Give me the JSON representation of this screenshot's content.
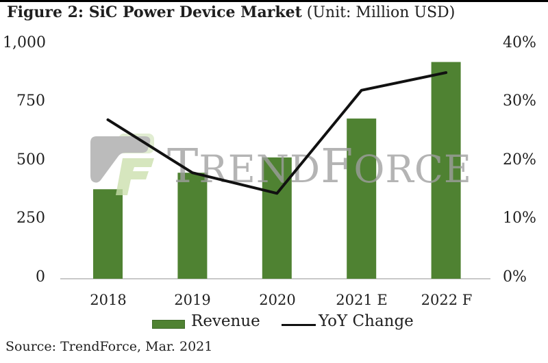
{
  "title": {
    "main": "Figure 2: SiC Power Device Market",
    "unit": " (Unit: Million USD)"
  },
  "source": "Source: TrendForce, Mar. 2021",
  "watermark": {
    "t": "T",
    "rend": "REND",
    "f": "F",
    "orce": "ORCE"
  },
  "legend": {
    "revenue": "Revenue",
    "yoy": "YoY Change"
  },
  "chart_data": {
    "type": "bar+line combo",
    "categories": [
      "2018",
      "2019",
      "2020",
      "2021 E",
      "2022 F"
    ],
    "series": [
      {
        "name": "Revenue",
        "type": "bar",
        "axis": "left",
        "values": [
          380,
          450,
          515,
          680,
          920
        ]
      },
      {
        "name": "YoY Change",
        "type": "line",
        "axis": "right",
        "values": [
          27,
          18,
          14.5,
          32,
          35
        ],
        "unit": "%"
      }
    ],
    "left_axis": {
      "tick_labels": [
        "1,000",
        "750",
        "500",
        "250",
        "0"
      ],
      "range": [
        0,
        1000
      ]
    },
    "right_axis": {
      "tick_labels": [
        "40%",
        "30%",
        "20%",
        "10%",
        "0%"
      ],
      "range": [
        0,
        40
      ]
    },
    "grid": "off",
    "legend_position": "bottom-center",
    "colors": {
      "bar": "#4f8232",
      "bar_border": "#3e6a28",
      "line": "#111111",
      "axis_line": "#c9c9c9",
      "watermark_text": "#9f9f9f",
      "logo_gray": "#a8a8a8",
      "logo_green": "#cbe0ad",
      "logo_green_light": "#d9e8c6"
    }
  }
}
